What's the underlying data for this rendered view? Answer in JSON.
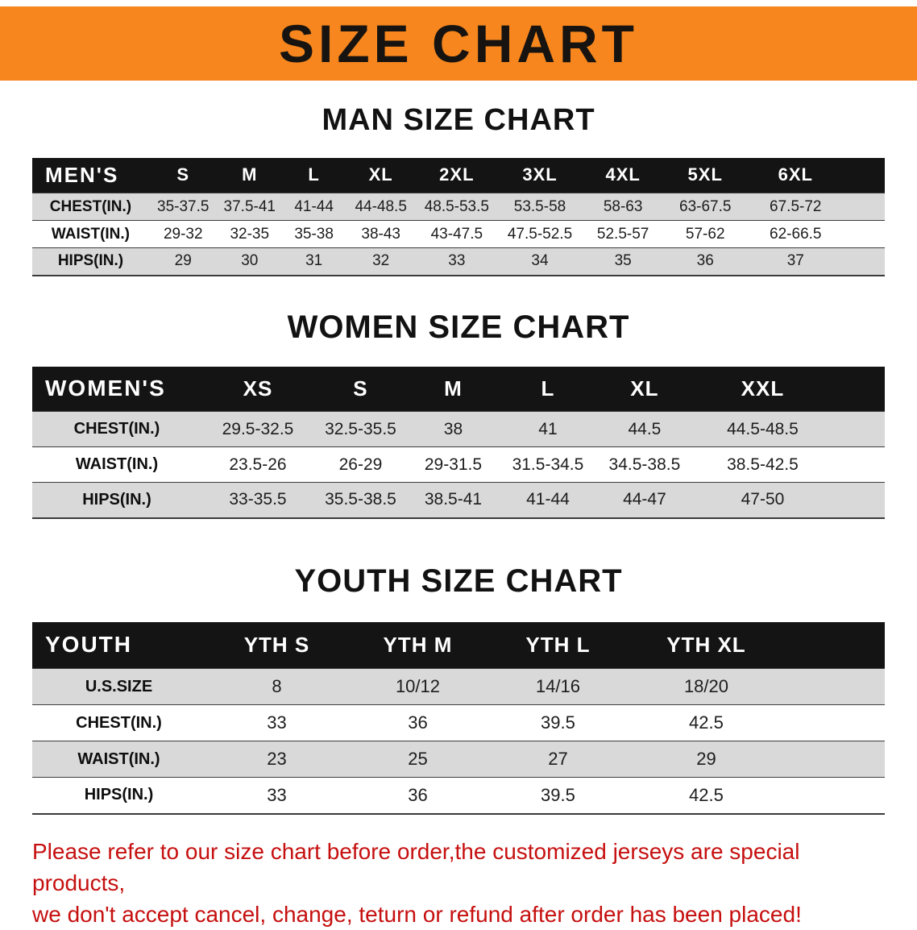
{
  "banner": {
    "title": "SIZE CHART",
    "background_color": "#f6861d",
    "title_color": "#171310"
  },
  "colors": {
    "table_header_bg": "#141414",
    "table_header_text": "#ffffff",
    "shaded_row_bg": "#d9d9d9",
    "note_text": "#c60f0f"
  },
  "sections": {
    "men": {
      "heading": "MAN SIZE CHART"
    },
    "women": {
      "heading": "WOMEN SIZE CHART"
    },
    "youth": {
      "heading": "YOUTH SIZE CHART"
    }
  },
  "tables": {
    "men": {
      "header": [
        "MEN'S",
        "S",
        "M",
        "L",
        "XL",
        "2XL",
        "3XL",
        "4XL",
        "5XL",
        "6XL"
      ],
      "rows": [
        [
          "CHEST(IN.)",
          "35-37.5",
          "37.5-41",
          "41-44",
          "44-48.5",
          "48.5-53.5",
          "53.5-58",
          "58-63",
          "63-67.5",
          "67.5-72"
        ],
        [
          "WAIST(IN.)",
          "29-32",
          "32-35",
          "35-38",
          "38-43",
          "43-47.5",
          "47.5-52.5",
          "52.5-57",
          "57-62",
          "62-66.5"
        ],
        [
          "HIPS(IN.)",
          "29",
          "30",
          "31",
          "32",
          "33",
          "34",
          "35",
          "36",
          "37"
        ]
      ]
    },
    "women": {
      "header": [
        "WOMEN'S",
        "XS",
        "S",
        "M",
        "L",
        "XL",
        "XXL"
      ],
      "rows": [
        [
          "CHEST(IN.)",
          "29.5-32.5",
          "32.5-35.5",
          "38",
          "41",
          "44.5",
          "44.5-48.5"
        ],
        [
          "WAIST(IN.)",
          "23.5-26",
          "26-29",
          "29-31.5",
          "31.5-34.5",
          "34.5-38.5",
          "38.5-42.5"
        ],
        [
          "HIPS(IN.)",
          "33-35.5",
          "35.5-38.5",
          "38.5-41",
          "41-44",
          "44-47",
          "47-50"
        ]
      ]
    },
    "youth": {
      "header": [
        "YOUTH",
        "YTH S",
        "YTH M",
        "YTH L",
        "YTH XL"
      ],
      "rows": [
        [
          "U.S.SIZE",
          "8",
          "10/12",
          "14/16",
          "18/20"
        ],
        [
          "CHEST(IN.)",
          "33",
          "36",
          "39.5",
          "42.5"
        ],
        [
          "WAIST(IN.)",
          "23",
          "25",
          "27",
          "29"
        ],
        [
          "HIPS(IN.)",
          "33",
          "36",
          "39.5",
          "42.5"
        ]
      ]
    }
  },
  "footer": {
    "line1": "Please refer to our size chart before order,the customized jerseys are special products,",
    "line2": "we don't accept cancel, change, teturn or refund after order has been placed!"
  }
}
